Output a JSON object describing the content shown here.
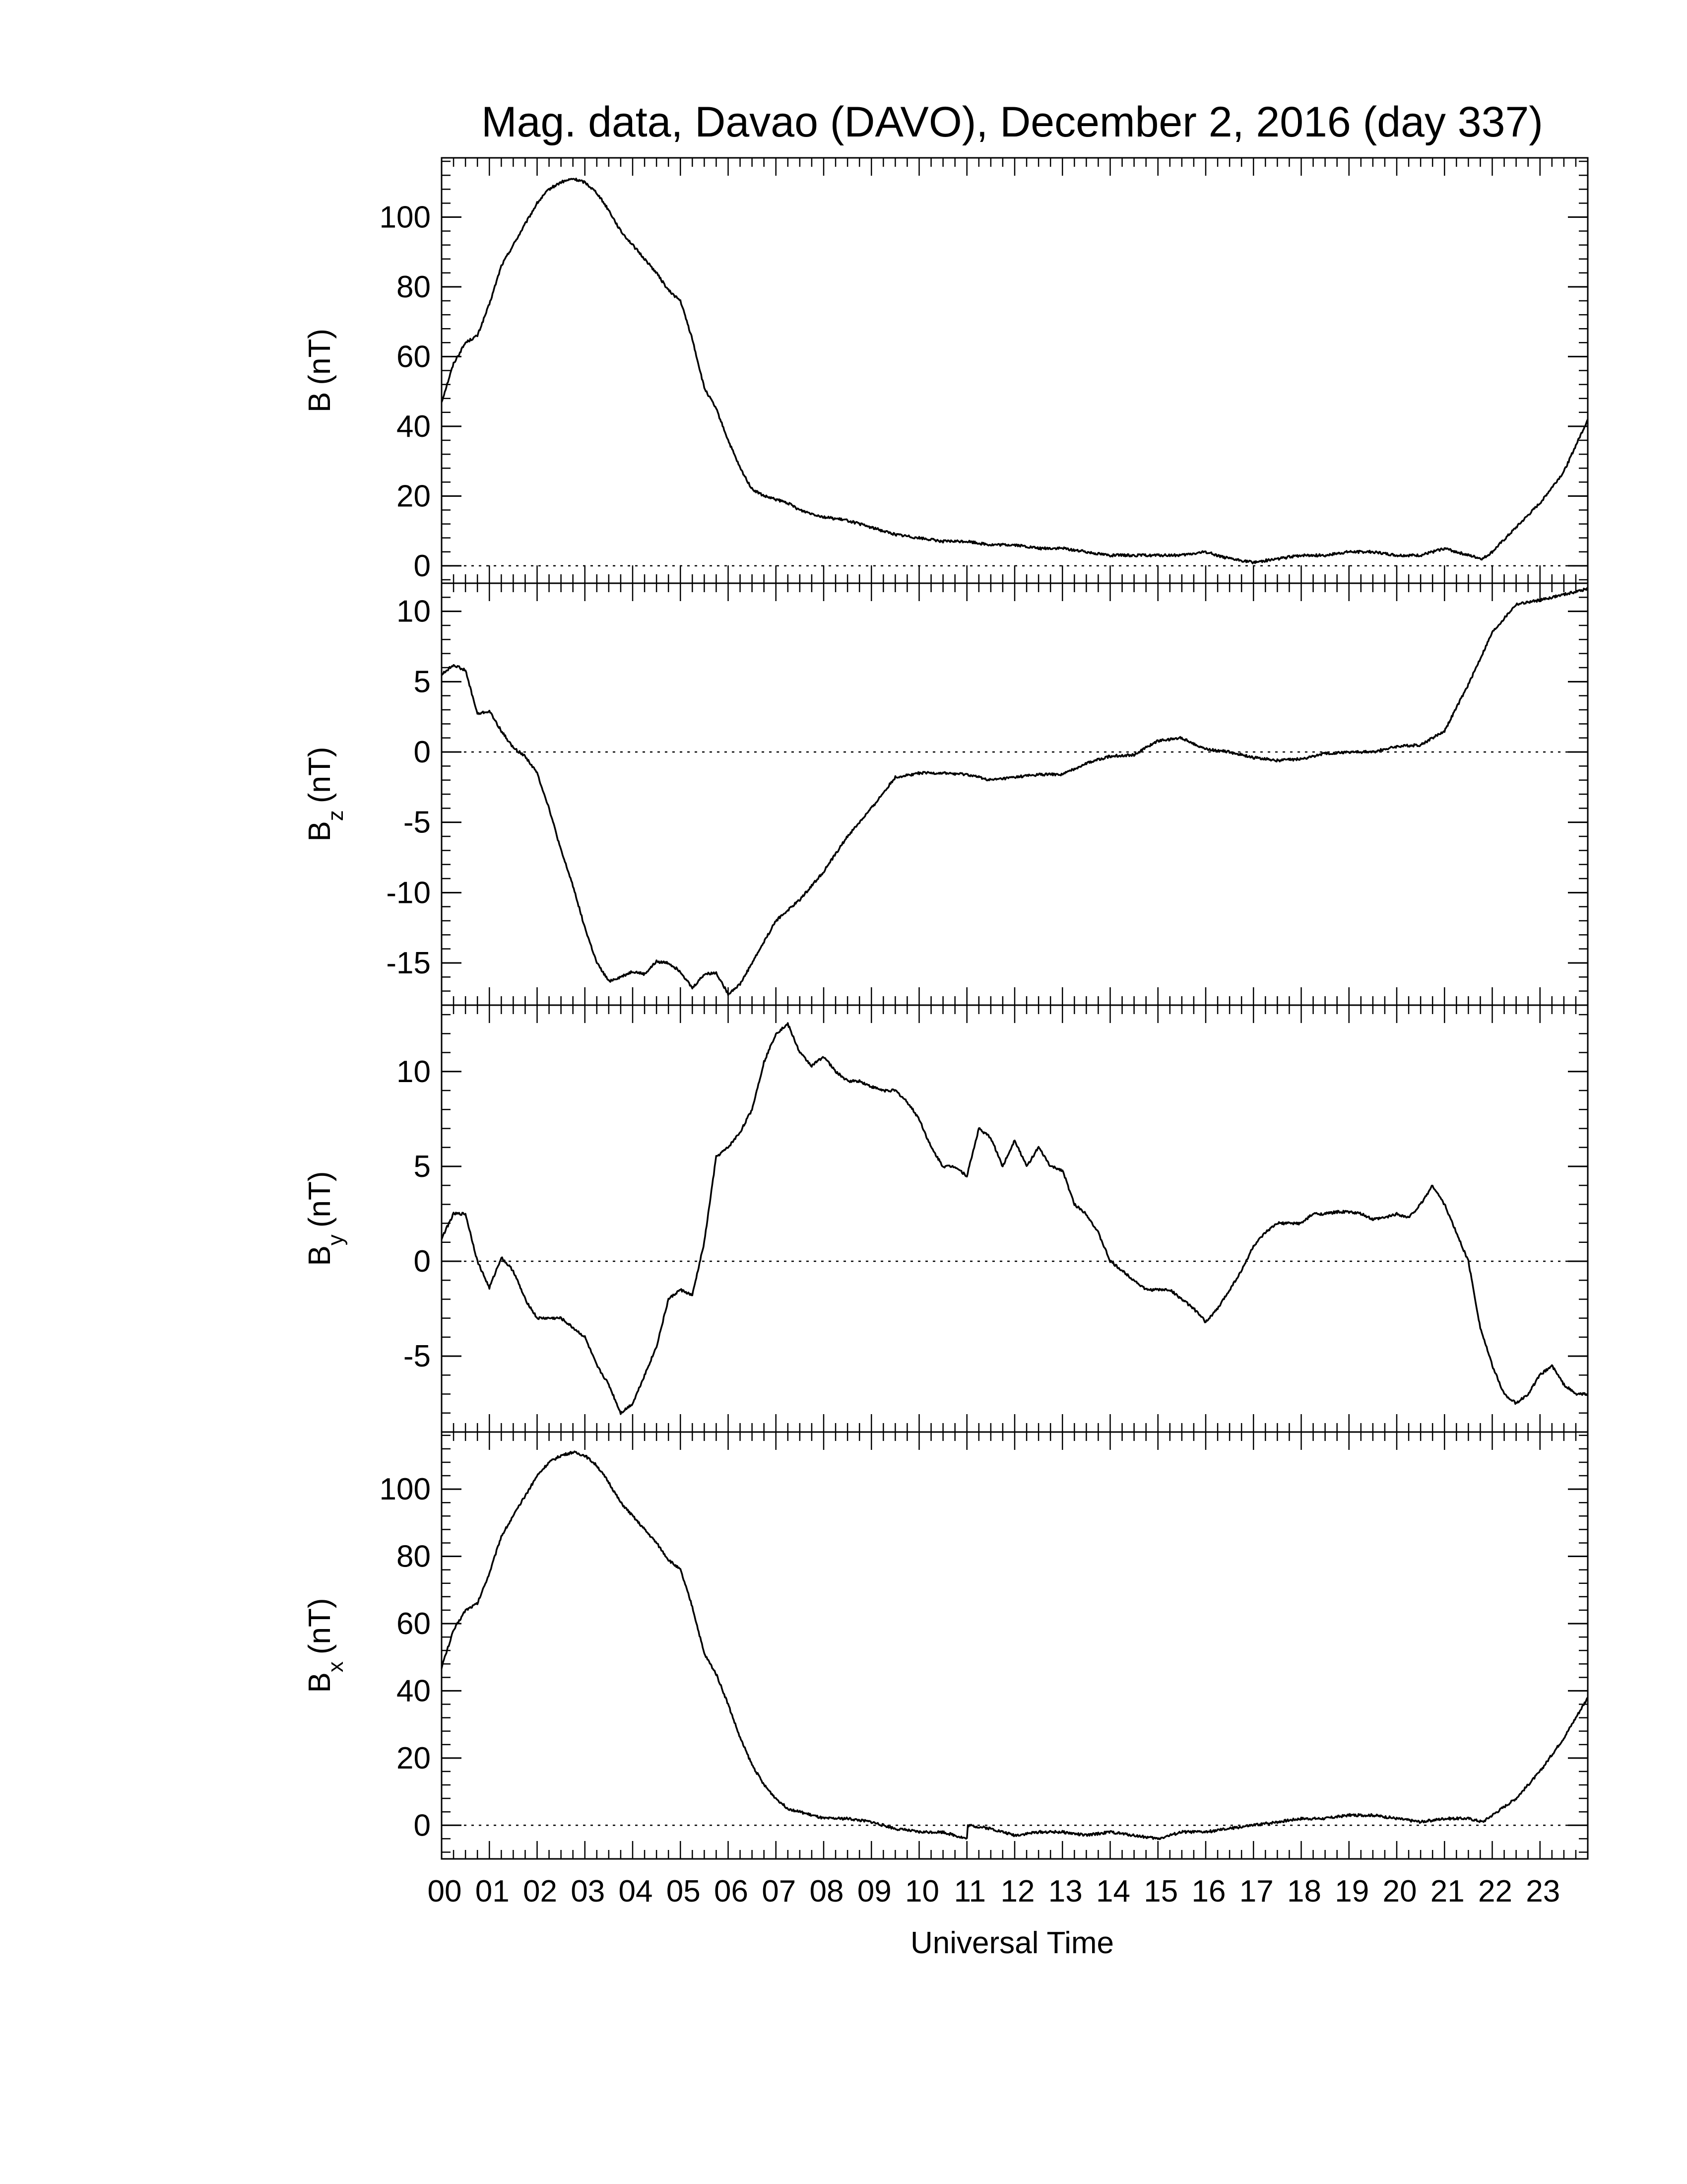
{
  "chart_data": {
    "title": "Mag. data, Davao (DAVO), December 2, 2016 (day 337)",
    "xlabel": "Universal Time",
    "x_tick_labels": [
      "00",
      "01",
      "02",
      "03",
      "04",
      "05",
      "06",
      "07",
      "08",
      "09",
      "10",
      "11",
      "12",
      "13",
      "14",
      "15",
      "16",
      "17",
      "18",
      "19",
      "20",
      "21",
      "22",
      "23"
    ],
    "xlim": [
      0,
      24
    ],
    "line_color": "#000000",
    "panels": [
      {
        "type": "line",
        "ylabel": "B",
        "ylabel_sub": "",
        "ylabel_unit": "(nT)",
        "ylim": [
          -5,
          117
        ],
        "yticks": [
          0,
          20,
          40,
          60,
          80,
          100
        ],
        "zero_line": true,
        "x": [
          0,
          0.25,
          0.5,
          0.75,
          1,
          1.25,
          1.5,
          1.75,
          2,
          2.25,
          2.5,
          2.75,
          3,
          3.25,
          3.5,
          3.75,
          4,
          4.25,
          4.5,
          4.75,
          5,
          5.25,
          5.5,
          5.75,
          6,
          6.25,
          6.5,
          6.75,
          7,
          7.25,
          7.5,
          7.75,
          8,
          8.5,
          9,
          9.5,
          10,
          10.5,
          11,
          11.5,
          12,
          12.5,
          13,
          13.5,
          14,
          14.5,
          15,
          15.5,
          16,
          16.5,
          17,
          17.5,
          18,
          18.5,
          19,
          19.5,
          20,
          20.5,
          21,
          21.5,
          21.8,
          22,
          22.5,
          23,
          23.5,
          24
        ],
        "values": [
          47,
          58,
          64,
          66,
          75,
          86,
          92,
          98,
          104,
          108,
          110,
          111,
          110,
          107,
          102,
          96,
          92,
          88,
          84,
          79,
          76,
          65,
          51,
          45,
          36,
          28,
          22,
          20,
          19,
          18,
          16,
          15,
          14,
          13,
          11,
          9,
          8,
          7,
          7,
          6,
          6,
          5,
          5,
          4,
          3,
          3,
          3,
          3,
          4,
          2,
          1,
          2,
          3,
          3,
          4,
          4,
          3,
          3,
          5,
          3,
          2,
          4,
          11,
          18,
          27,
          42
        ]
      },
      {
        "type": "line",
        "ylabel": "B",
        "ylabel_sub": "z",
        "ylabel_unit": "(nT)",
        "ylim": [
          -18,
          12
        ],
        "yticks": [
          10,
          5,
          0,
          -5,
          -10,
          -15
        ],
        "zero_line": true,
        "x": [
          0,
          0.25,
          0.5,
          0.75,
          1,
          1.25,
          1.5,
          1.75,
          2,
          2.25,
          2.5,
          2.75,
          3,
          3.25,
          3.5,
          3.75,
          4,
          4.25,
          4.5,
          4.75,
          5,
          5.25,
          5.5,
          5.75,
          6,
          6.25,
          6.5,
          6.75,
          7,
          7.5,
          8,
          8.5,
          9,
          9.5,
          10,
          10.5,
          11,
          11.5,
          12,
          12.5,
          13,
          13.5,
          14,
          14.5,
          15,
          15.5,
          16,
          16.5,
          17,
          17.5,
          18,
          18.5,
          19,
          19.5,
          20,
          20.5,
          21,
          21.5,
          22,
          22.5,
          23,
          23.5,
          24
        ],
        "values": [
          5.5,
          6.2,
          5.8,
          2.7,
          2.9,
          1.5,
          0.3,
          -0.3,
          -1.5,
          -4,
          -7,
          -9.5,
          -12.5,
          -15,
          -16.3,
          -16,
          -15.6,
          -15.8,
          -14.9,
          -15,
          -15.6,
          -16.8,
          -15.8,
          -15.7,
          -17.2,
          -16.5,
          -15,
          -13.5,
          -12,
          -10.5,
          -8.5,
          -6,
          -4,
          -1.8,
          -1.5,
          -1.5,
          -1.6,
          -2,
          -1.8,
          -1.6,
          -1.6,
          -0.8,
          -0.3,
          -0.2,
          0.8,
          1,
          0.2,
          0,
          -0.4,
          -0.6,
          -0.5,
          -0.1,
          0,
          0,
          0.4,
          0.5,
          1.5,
          4.8,
          8.5,
          10.5,
          10.8,
          11.2,
          11.6
        ]
      },
      {
        "type": "line",
        "ylabel": "B",
        "ylabel_sub": "y",
        "ylabel_unit": "(nT)",
        "ylim": [
          -9,
          13.5
        ],
        "yticks": [
          10,
          5,
          0,
          -5
        ],
        "zero_line": true,
        "x": [
          0,
          0.25,
          0.5,
          0.75,
          1,
          1.25,
          1.5,
          1.75,
          2,
          2.25,
          2.5,
          2.75,
          3,
          3.25,
          3.5,
          3.75,
          4,
          4.25,
          4.5,
          4.75,
          5,
          5.25,
          5.5,
          5.75,
          6,
          6.25,
          6.5,
          6.75,
          7,
          7.25,
          7.5,
          7.75,
          8,
          8.25,
          8.5,
          8.75,
          9,
          9.25,
          9.5,
          9.75,
          10,
          10.25,
          10.5,
          10.75,
          11,
          11.25,
          11.5,
          11.75,
          12,
          12.25,
          12.5,
          12.75,
          13,
          13.25,
          13.5,
          13.75,
          14,
          14.25,
          14.5,
          14.75,
          15,
          15.25,
          15.5,
          15.75,
          16,
          16.25,
          16.5,
          16.75,
          17,
          17.25,
          17.5,
          17.75,
          18,
          18.25,
          18.5,
          18.75,
          19,
          19.25,
          19.5,
          19.75,
          20,
          20.25,
          20.5,
          20.75,
          21,
          21.25,
          21.5,
          21.75,
          22,
          22.25,
          22.5,
          22.75,
          23,
          23.25,
          23.5,
          23.75,
          24
        ],
        "values": [
          1.2,
          2.5,
          2.5,
          0,
          -1.4,
          0.2,
          -0.5,
          -2,
          -3,
          -3,
          -3,
          -3.5,
          -4,
          -5.5,
          -6.5,
          -8,
          -7.5,
          -6,
          -4.5,
          -2,
          -1.5,
          -1.8,
          1,
          5.5,
          6,
          6.8,
          8,
          10.5,
          12,
          12.5,
          11,
          10.3,
          10.8,
          10,
          9.5,
          9.5,
          9.2,
          9,
          9,
          8.4,
          7.5,
          6,
          5,
          5,
          4.5,
          7,
          6.5,
          5,
          6.4,
          5,
          6,
          5,
          4.8,
          3,
          2.5,
          1.5,
          0,
          -0.5,
          -1,
          -1.5,
          -1.5,
          -1.5,
          -2,
          -2.5,
          -3.2,
          -2.5,
          -1.5,
          -0.5,
          0.8,
          1.5,
          2,
          2,
          2,
          2.5,
          2.5,
          2.6,
          2.6,
          2.5,
          2.2,
          2.3,
          2.5,
          2.3,
          3,
          4,
          3,
          1.5,
          0,
          -3.5,
          -5.5,
          -7,
          -7.5,
          -7,
          -6,
          -5.5,
          -6.5,
          -7,
          -7
        ]
      },
      {
        "type": "line",
        "ylabel": "B",
        "ylabel_sub": "x",
        "ylabel_unit": "(nT)",
        "ylim": [
          -10,
          117
        ],
        "yticks": [
          0,
          20,
          40,
          60,
          80,
          100
        ],
        "zero_line": true,
        "x": [
          0,
          0.25,
          0.5,
          0.75,
          1,
          1.25,
          1.5,
          1.75,
          2,
          2.25,
          2.5,
          2.75,
          3,
          3.25,
          3.5,
          3.75,
          4,
          4.25,
          4.5,
          4.75,
          5,
          5.25,
          5.5,
          5.75,
          6,
          6.25,
          6.5,
          6.75,
          7,
          7.25,
          7.5,
          7.75,
          8,
          8.5,
          9,
          9.5,
          10,
          10.5,
          11,
          11.02,
          11.5,
          12,
          12.5,
          13,
          13.5,
          14,
          14.5,
          15,
          15.5,
          16,
          16.5,
          17,
          17.5,
          18,
          18.5,
          19,
          19.5,
          20,
          20.5,
          21,
          21.5,
          21.8,
          22,
          22.5,
          23,
          23.5,
          24
        ],
        "values": [
          47,
          58,
          64,
          66,
          75,
          86,
          92,
          98,
          104,
          108,
          110,
          111,
          110,
          107,
          102,
          96,
          92,
          88,
          84,
          79,
          76,
          65,
          51,
          45,
          36,
          26,
          18,
          12,
          8,
          5,
          4,
          3,
          2,
          2,
          1,
          -1,
          -2,
          -2,
          -4,
          0,
          -1,
          -3,
          -2,
          -2,
          -3,
          -2,
          -3,
          -4,
          -2,
          -2,
          -1,
          0,
          1,
          2,
          2,
          3,
          3,
          2,
          1,
          2,
          2,
          1,
          3,
          8,
          16,
          26,
          38
        ]
      }
    ]
  }
}
